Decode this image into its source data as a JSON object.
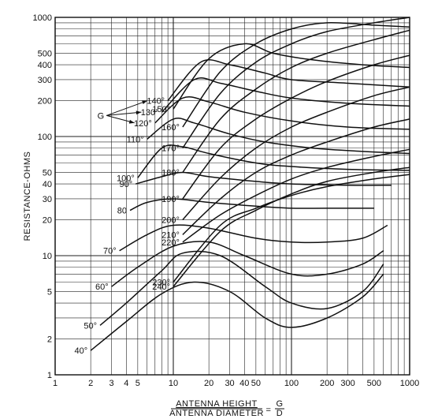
{
  "chart_data": {
    "type": "line",
    "x_scale": "log",
    "y_scale": "log",
    "xlim": [
      1,
      1000
    ],
    "ylim": [
      1,
      1000
    ],
    "grid": true,
    "xlabel_numerator": "ANTENNA HEIGHT",
    "xlabel_denominator": "ANTENNA DIAMETER",
    "xlabel_equals": "=",
    "xlabel_fraction_numerator": "G",
    "xlabel_fraction_denominator": "D",
    "ylabel": "RESISTANCE-OHMS",
    "x_ticks": [
      1,
      2,
      3,
      4,
      5,
      10,
      20,
      30,
      40,
      50,
      100,
      200,
      300,
      500,
      1000
    ],
    "x_tick_labels": [
      "1",
      "2",
      "3",
      "4",
      "5",
      "10",
      "20",
      "30",
      "40",
      "50",
      "100",
      "200",
      "300",
      "500",
      "1000"
    ],
    "y_ticks": [
      1,
      2,
      5,
      10,
      20,
      30,
      40,
      50,
      100,
      200,
      300,
      400,
      500,
      1000
    ],
    "y_tick_labels": [
      "1",
      "2",
      "5",
      "10",
      "20",
      "30",
      "40",
      "50",
      "100",
      "200",
      "300",
      "400",
      "500",
      "1000"
    ],
    "g_annotation": "G",
    "g_arrow_targets": [
      "140°",
      "130°",
      "120°"
    ],
    "series": [
      {
        "name": "40°",
        "x": [
          2,
          4,
          8,
          15,
          30,
          60,
          100,
          200,
          400,
          600
        ],
        "y": [
          1.6,
          2.8,
          4.8,
          6.0,
          5.0,
          3.0,
          2.5,
          3.0,
          4.5,
          7.0
        ]
      },
      {
        "name": "50°",
        "x": [
          2.4,
          4,
          8,
          12,
          25,
          60,
          100,
          200,
          400,
          600
        ],
        "y": [
          2.6,
          4.0,
          7.5,
          10.5,
          10,
          5.5,
          4.0,
          3.6,
          5.0,
          8.5
        ]
      },
      {
        "name": "60°",
        "x": [
          3,
          5,
          10,
          20,
          40,
          100,
          200,
          400,
          600
        ],
        "y": [
          5.5,
          8,
          12,
          13,
          10,
          7,
          7.0,
          8.5,
          11
        ]
      },
      {
        "name": "70°",
        "x": [
          3.5,
          6,
          10,
          20,
          50,
          100,
          200,
          400,
          650
        ],
        "y": [
          11,
          15,
          18,
          17,
          14,
          13,
          13,
          14,
          18
        ]
      },
      {
        "name": "80",
        "x": [
          4.3,
          6,
          10,
          20,
          50,
          100,
          200,
          500
        ],
        "y": [
          24,
          28,
          30,
          28,
          26,
          25,
          25,
          25
        ]
      },
      {
        "name": "90°",
        "x": [
          4.8,
          8,
          12,
          20,
          50,
          100,
          300,
          700
        ],
        "y": [
          40,
          46,
          50,
          46,
          42,
          40,
          39,
          39
        ]
      },
      {
        "name": "100°",
        "x": [
          5,
          8,
          12,
          20,
          50,
          100,
          300,
          1000
        ],
        "y": [
          45,
          80,
          82,
          72,
          60,
          56,
          53,
          52
        ]
      },
      {
        "name": "110°",
        "x": [
          6,
          10,
          15,
          30,
          60,
          150,
          400,
          1000
        ],
        "y": [
          95,
          140,
          130,
          105,
          90,
          80,
          75,
          72
        ]
      },
      {
        "name": "120°",
        "x": [
          7,
          12,
          20,
          40,
          100,
          300,
          1000
        ],
        "y": [
          130,
          210,
          195,
          160,
          135,
          120,
          115
        ]
      },
      {
        "name": "130°",
        "x": [
          8,
          15,
          25,
          50,
          100,
          300,
          1000
        ],
        "y": [
          160,
          300,
          280,
          240,
          210,
          190,
          180
        ]
      },
      {
        "name": "140°",
        "x": [
          9,
          17,
          30,
          60,
          100,
          300,
          1000
        ],
        "y": [
          200,
          420,
          400,
          340,
          300,
          280,
          260
        ]
      },
      {
        "name": "150°",
        "x": [
          10,
          20,
          40,
          70,
          150,
          400,
          1000
        ],
        "y": [
          170,
          450,
          600,
          500,
          440,
          400,
          380
        ]
      },
      {
        "name": "160°",
        "x": [
          12,
          25,
          50,
          100,
          200,
          500,
          1000
        ],
        "y": [
          120,
          350,
          600,
          800,
          900,
          860,
          830
        ]
      },
      {
        "name": "170°",
        "x": [
          12,
          25,
          50,
          100,
          200,
          500,
          1000
        ],
        "y": [
          80,
          230,
          420,
          600,
          760,
          900,
          1000
        ]
      },
      {
        "name": "180°",
        "x": [
          12,
          25,
          50,
          100,
          200,
          500,
          1000
        ],
        "y": [
          50,
          140,
          250,
          380,
          500,
          650,
          780
        ]
      },
      {
        "name": "190°",
        "x": [
          12,
          25,
          50,
          100,
          200,
          500,
          1000
        ],
        "y": [
          30,
          80,
          140,
          210,
          290,
          400,
          480
        ]
      },
      {
        "name": "200°",
        "x": [
          12,
          25,
          50,
          100,
          200,
          500,
          1000
        ],
        "y": [
          20,
          45,
          80,
          120,
          160,
          220,
          260
        ]
      },
      {
        "name": "210°",
        "x": [
          12,
          25,
          50,
          100,
          200,
          500,
          1000
        ],
        "y": [
          15,
          30,
          50,
          70,
          90,
          120,
          140
        ]
      },
      {
        "name": "220°",
        "x": [
          12,
          25,
          50,
          100,
          200,
          500,
          1000
        ],
        "y": [
          13,
          22,
          32,
          44,
          55,
          68,
          78
        ]
      },
      {
        "name": "230°",
        "x": [
          10,
          25,
          50,
          100,
          200,
          500,
          1000
        ],
        "y": [
          6,
          18,
          25,
          32,
          38,
          44,
          48
        ]
      },
      {
        "name": "240°",
        "x": [
          10,
          25,
          50,
          100,
          200,
          500,
          1000
        ],
        "y": [
          5.5,
          16,
          24,
          33,
          42,
          50,
          55
        ]
      }
    ]
  }
}
